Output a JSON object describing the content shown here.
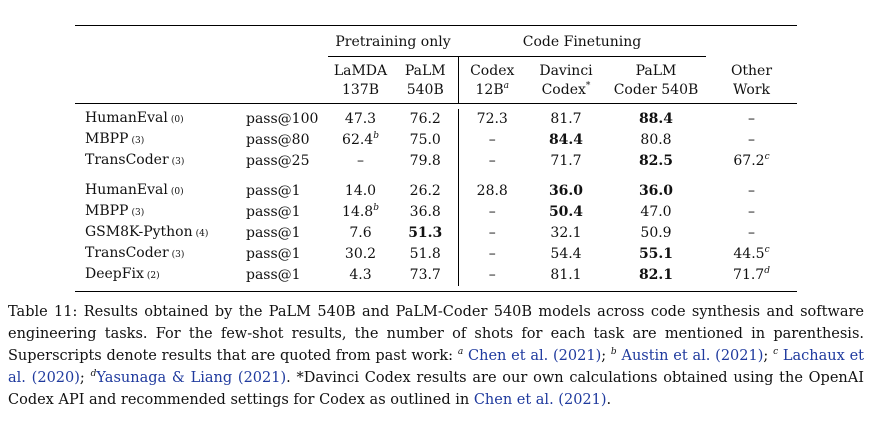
{
  "table": {
    "group_headers": {
      "pretraining": "Pretraining only",
      "finetuning": "Code Finetuning"
    },
    "columns": {
      "lamda": [
        "LaMDA",
        "137B"
      ],
      "palm": [
        "PaLM",
        "540B"
      ],
      "codex12b": [
        "Codex",
        "12B"
      ],
      "codex12b_sup": "a",
      "davinci": [
        "Davinci",
        "Codex"
      ],
      "davinci_sup": "*",
      "palm_coder": [
        "PaLM",
        "Coder 540B"
      ],
      "other": [
        "Other",
        "Work"
      ]
    },
    "group1": [
      {
        "task": "HumanEval",
        "shots": "(0)",
        "metric": "pass@100",
        "lamda": "47.3",
        "lamda_sup": "",
        "palm": "76.2",
        "codex": "72.3",
        "davinci": "81.7",
        "palm_coder": "88.4",
        "other": "–",
        "other_sup": ""
      },
      {
        "task": "MBPP",
        "shots": "(3)",
        "metric": "pass@80",
        "lamda": "62.4",
        "lamda_sup": "b",
        "palm": "75.0",
        "codex": "–",
        "davinci": "84.4",
        "palm_coder": "80.8",
        "other": "–",
        "other_sup": ""
      },
      {
        "task": "TransCoder",
        "shots": "(3)",
        "metric": "pass@25",
        "lamda": "–",
        "lamda_sup": "",
        "palm": "79.8",
        "codex": "–",
        "davinci": "71.7",
        "palm_coder": "82.5",
        "other": "67.2",
        "other_sup": "c"
      }
    ],
    "group2": [
      {
        "task": "HumanEval",
        "shots": "(0)",
        "metric": "pass@1",
        "lamda": "14.0",
        "lamda_sup": "",
        "palm": "26.2",
        "codex": "28.8",
        "davinci": "36.0",
        "palm_coder": "36.0",
        "other": "–",
        "other_sup": ""
      },
      {
        "task": "MBPP",
        "shots": "(3)",
        "metric": "pass@1",
        "lamda": "14.8",
        "lamda_sup": "b",
        "palm": "36.8",
        "codex": "–",
        "davinci": "50.4",
        "palm_coder": "47.0",
        "other": "–",
        "other_sup": ""
      },
      {
        "task": "GSM8K-Python",
        "shots": "(4)",
        "metric": "pass@1",
        "lamda": "7.6",
        "lamda_sup": "",
        "palm": "51.3",
        "codex": "–",
        "davinci": "32.1",
        "palm_coder": "50.9",
        "other": "–",
        "other_sup": ""
      },
      {
        "task": "TransCoder",
        "shots": "(3)",
        "metric": "pass@1",
        "lamda": "30.2",
        "lamda_sup": "",
        "palm": "51.8",
        "codex": "–",
        "davinci": "54.4",
        "palm_coder": "55.1",
        "other": "44.5",
        "other_sup": "c"
      },
      {
        "task": "DeepFix",
        "shots": "(2)",
        "metric": "pass@1",
        "lamda": "4.3",
        "lamda_sup": "",
        "palm": "73.7",
        "codex": "–",
        "davinci": "81.1",
        "palm_coder": "82.1",
        "other": "71.7",
        "other_sup": "d"
      }
    ]
  },
  "caption": {
    "t1": "Table 11: Results obtained by the PaLM 540B and PaLM-Coder 540B models across code synthesis and software engineering tasks. For the few-shot results, the number of shots for each task are mentioned in parenthesis. Superscripts denote results that are quoted from past work: ",
    "sup_a": "a",
    "ref1": "Chen et al.",
    "y1o": " (",
    "year1": "2021",
    "y1c": ")",
    "sep1": "; ",
    "sup_b": "b",
    "ref2": "Austin et al.",
    "y2o": " (",
    "year2": "2021",
    "y2c": ")",
    "sep2": "; ",
    "sup_c": "c",
    "ref3": "Lachaux et al.",
    "y3o": " (",
    "year3": "2020",
    "y3c": ")",
    "sep3": "; ",
    "sup_d": "d",
    "ref4": "Yasunaga & Liang",
    "y4o": " (",
    "year4": "2021",
    "y4c": ")",
    "t2": ". *Davinci Codex results are our own calculations obtained using the OpenAI Codex API and recommended settings for Codex as outlined in ",
    "ref5": "Chen et al.",
    "y5o": " (",
    "year5": "2021",
    "y5c": ")",
    "t3": "."
  },
  "bold_cells": {
    "group1": [
      [
        "palm_coder"
      ],
      [
        "davinci"
      ],
      [
        "palm_coder"
      ]
    ],
    "group2": [
      [
        "davinci",
        "palm_coder"
      ],
      [
        "davinci"
      ],
      [
        "palm"
      ],
      [
        "palm_coder"
      ],
      [
        "palm_coder"
      ]
    ]
  }
}
